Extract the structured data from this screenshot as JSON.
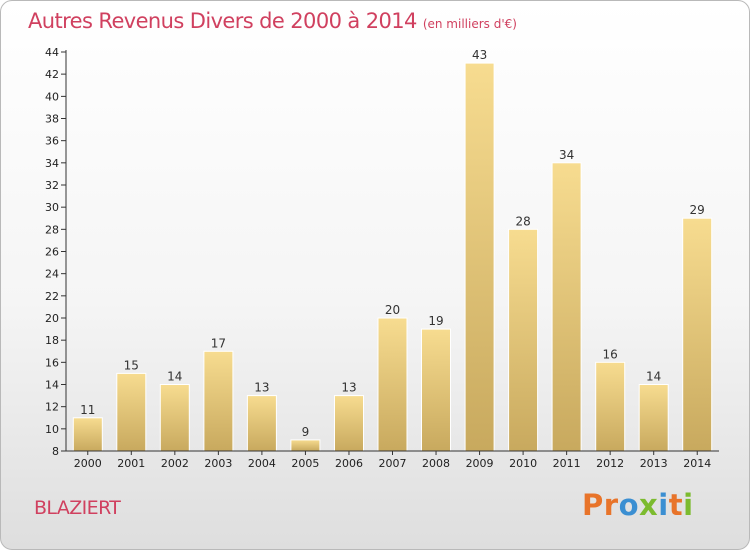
{
  "header": {
    "title": "Autres Revenus Divers de 2000 à 2014",
    "unit": "(en milliers d'€)"
  },
  "footer": {
    "commune": "BLAZIERT",
    "logo_text": "Proxiti",
    "logo_colors": [
      "#e8742a",
      "#e8742a",
      "#3b8fd2",
      "#7cbb2f",
      "#3b8fd2",
      "#e8742a",
      "#7cbb2f"
    ]
  },
  "chart_data": {
    "type": "bar",
    "title": "Autres Revenus Divers de 2000 à 2014",
    "subtitle": "(en milliers d'€)",
    "categories": [
      "2000",
      "2001",
      "2002",
      "2003",
      "2004",
      "2005",
      "2006",
      "2007",
      "2008",
      "2009",
      "2010",
      "2011",
      "2012",
      "2013",
      "2014"
    ],
    "values": [
      11,
      15,
      14,
      17,
      13,
      9,
      13,
      20,
      19,
      43,
      28,
      34,
      16,
      14,
      29
    ],
    "ylim": [
      8,
      44
    ],
    "yticks": [
      8,
      10,
      12,
      14,
      16,
      18,
      20,
      22,
      24,
      26,
      28,
      30,
      32,
      34,
      36,
      38,
      40,
      42,
      44
    ],
    "grid": false,
    "bar_colors": {
      "light": "#f7dc90",
      "dark": "#c8a95e"
    }
  }
}
